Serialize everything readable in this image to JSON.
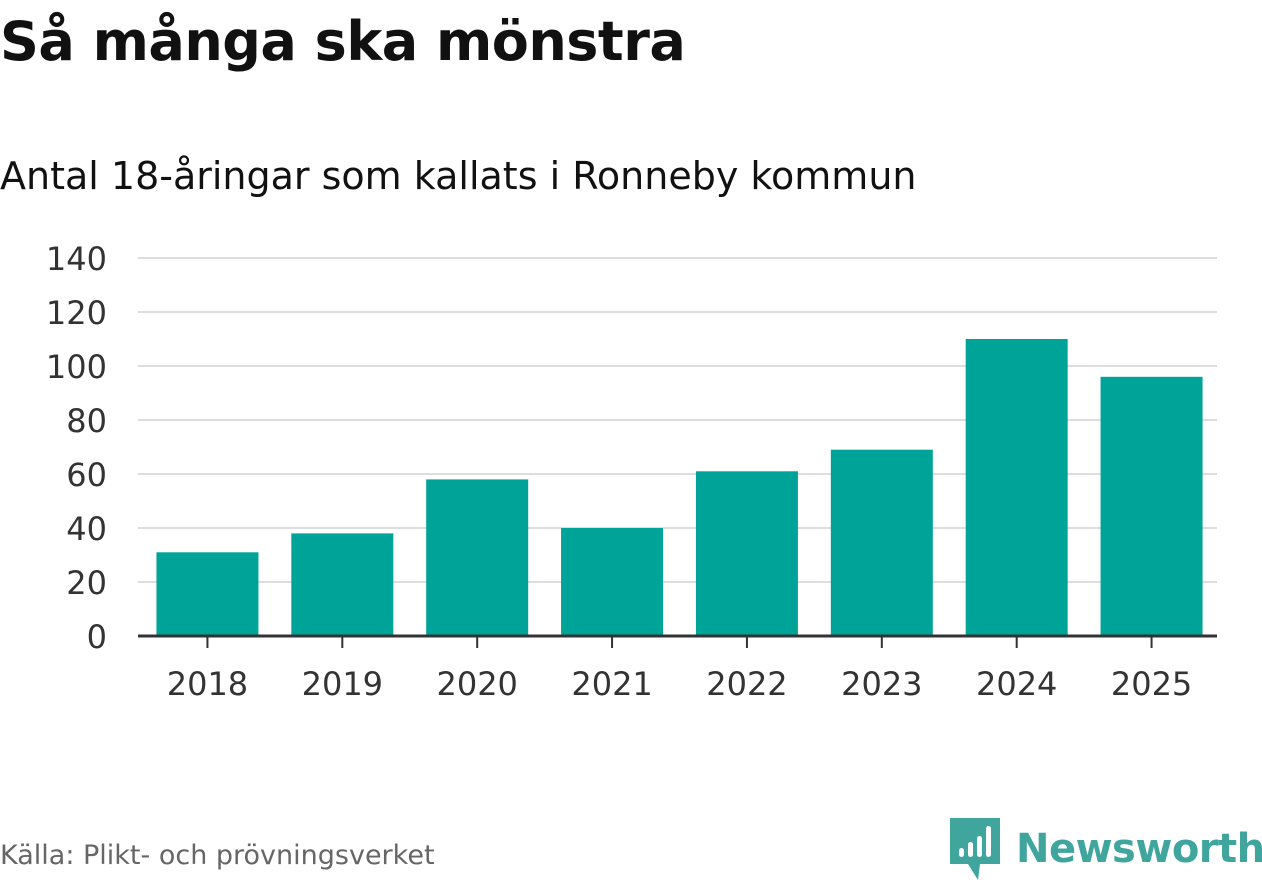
{
  "chart_data": {
    "type": "bar",
    "title": "Så många ska mönstra",
    "subtitle": "Antal 18-åringar som kallats i Ronneby kommun",
    "categories": [
      "2018",
      "2019",
      "2020",
      "2021",
      "2022",
      "2023",
      "2024",
      "2025"
    ],
    "values": [
      31,
      38,
      58,
      40,
      61,
      69,
      110,
      96
    ],
    "ylim": [
      0,
      140
    ],
    "yticks": [
      "0",
      "20",
      "40",
      "60",
      "80",
      "100",
      "120",
      "140"
    ],
    "ytick_values": [
      0,
      20,
      40,
      60,
      80,
      100,
      120,
      140
    ],
    "xlabel": "",
    "ylabel": "",
    "grid": true,
    "bar_color": "#00a398",
    "grid_color": "#dddddd",
    "axis_color": "#333333"
  },
  "source": "Källa: Plikt- och prövningsverket",
  "brand": {
    "name": "Newsworthy",
    "icon": "newsworthy-logo-icon",
    "color": "#3fa59d"
  }
}
